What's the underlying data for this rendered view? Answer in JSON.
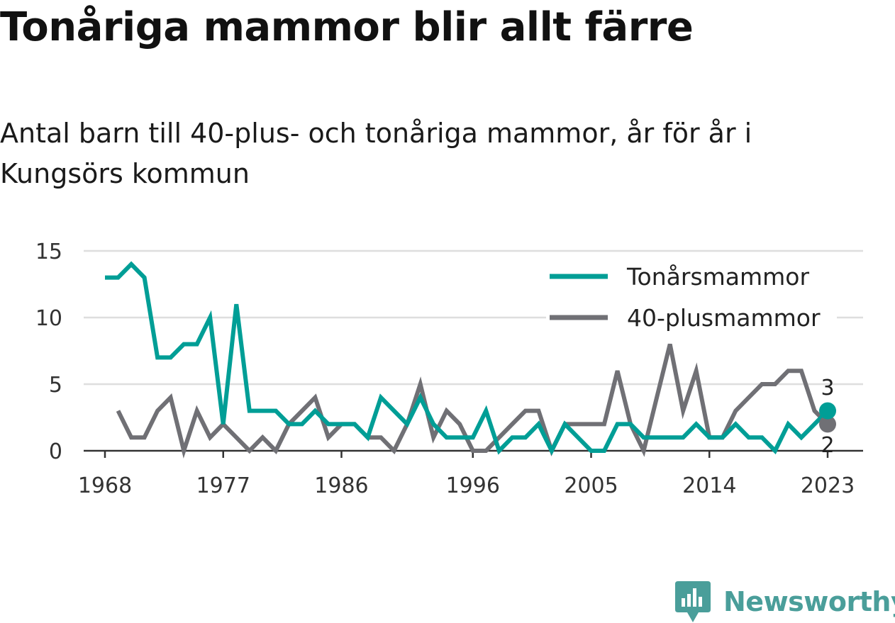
{
  "title": "Tonåriga mammor blir allt färre",
  "subtitle": "Antal barn till 40-plus- och tonåriga mammor, år för år i Kungsörs kommun",
  "brand": {
    "name": "Newsworthy",
    "icon": "newsworthy-bar-chart-icon",
    "color": "#4a9e9a"
  },
  "chart_data": {
    "type": "line",
    "x": [
      1968,
      1969,
      1970,
      1971,
      1972,
      1973,
      1974,
      1975,
      1976,
      1977,
      1978,
      1979,
      1980,
      1981,
      1982,
      1983,
      1984,
      1985,
      1986,
      1987,
      1988,
      1989,
      1990,
      1991,
      1992,
      1993,
      1994,
      1995,
      1996,
      1997,
      1998,
      1999,
      2000,
      2001,
      2002,
      2003,
      2004,
      2005,
      2006,
      2007,
      2008,
      2009,
      2010,
      2011,
      2012,
      2013,
      2014,
      2015,
      2016,
      2017,
      2018,
      2019,
      2020,
      2021,
      2022,
      2023
    ],
    "series": [
      {
        "name": "Tonårsmammor",
        "color": "#009e96",
        "values": [
          13,
          13,
          14,
          13,
          7,
          7,
          8,
          8,
          10,
          2,
          11,
          3,
          3,
          3,
          2,
          2,
          3,
          2,
          2,
          2,
          1,
          4,
          3,
          2,
          4,
          2,
          1,
          1,
          1,
          3,
          0,
          1,
          1,
          2,
          0,
          2,
          1,
          0,
          0,
          2,
          2,
          1,
          1,
          1,
          1,
          2,
          1,
          1,
          2,
          1,
          1,
          0,
          2,
          1,
          2,
          3
        ]
      },
      {
        "name": "40-plusmammor",
        "color": "#707075",
        "values": [
          null,
          3,
          1,
          1,
          3,
          4,
          0,
          3,
          1,
          2,
          1,
          0,
          1,
          0,
          2,
          3,
          4,
          1,
          2,
          2,
          1,
          1,
          0,
          2,
          5,
          1,
          3,
          2,
          0,
          0,
          1,
          2,
          3,
          3,
          0,
          2,
          2,
          2,
          2,
          6,
          2,
          0,
          4,
          8,
          3,
          6,
          1,
          1,
          3,
          4,
          5,
          5,
          6,
          6,
          3,
          2
        ]
      }
    ],
    "x_ticks": [
      "1968",
      "1977",
      "1986",
      "1996",
      "2005",
      "2014",
      "2023"
    ],
    "y_ticks": [
      "0",
      "5",
      "10",
      "15"
    ],
    "ylim": [
      0,
      15
    ],
    "grid": true,
    "legend_position": "top-right",
    "end_labels": [
      "3",
      "2"
    ]
  }
}
